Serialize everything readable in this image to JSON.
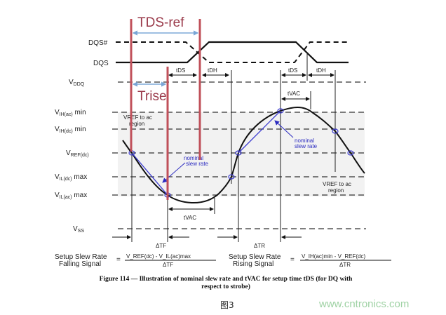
{
  "signals": {
    "dqs_bar": "DQS#",
    "dqs": "DQS"
  },
  "levels": [
    {
      "main": "V",
      "sub": "DDQ",
      "tail": ""
    },
    {
      "main": "V",
      "sub": "IH(ac)",
      "tail": " min"
    },
    {
      "main": "V",
      "sub": "IH(dc)",
      "tail": " min"
    },
    {
      "main": "V",
      "sub": "REF(dc)",
      "tail": ""
    },
    {
      "main": "V",
      "sub": "IL(dc)",
      "tail": " max"
    },
    {
      "main": "V",
      "sub": "IL(ac)",
      "tail": " max"
    },
    {
      "main": "V",
      "sub": "SS",
      "tail": ""
    }
  ],
  "annotations": {
    "tds_ref": "TDS-ref",
    "trise": "Trise",
    "tds": "tDS",
    "tdh": "tDH",
    "tvac": "tVAC",
    "nominal_line1": "nominal",
    "nominal_line2": "slew rate",
    "vref_region_line1": "VREF to ac",
    "vref_region_line2": "region",
    "delta_tf": "ΔTF",
    "delta_tr": "ΔTR"
  },
  "formulas": {
    "falling": {
      "left1": "Setup Slew Rate",
      "left2": "Falling Signal",
      "numerator": "V_REF(dc) - V_IL(ac)max",
      "denominator": "ΔTF"
    },
    "rising": {
      "left1": "Setup Slew Rate",
      "left2": "Rising Signal",
      "numerator": "V_IH(ac)min - V_REF(dc)",
      "denominator": "ΔTR"
    }
  },
  "caption": {
    "line1": "Figure 114 — Illustration of nominal slew rate and tVAC for setup time tDS (for DQ with",
    "line2": "respect to strobe)"
  },
  "figure_label": "图3",
  "watermark": "www.cntronics.com",
  "colors": {
    "red_marker": "#c0505a",
    "slew_line": "#3a3ad0",
    "region_fill": "#f0f0f0",
    "watermark": "#9fd2a4"
  }
}
